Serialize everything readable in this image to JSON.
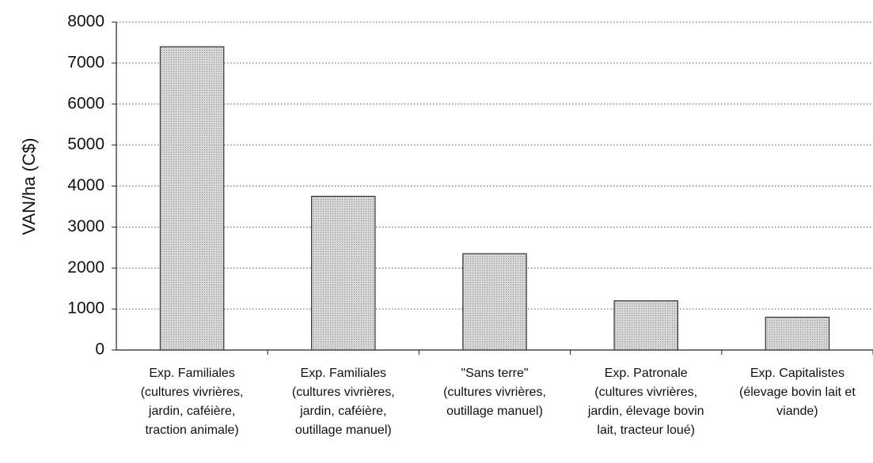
{
  "chart_data": {
    "type": "bar",
    "ylabel": "VAN/ha (C$)",
    "categories": [
      [
        "Exp. Familiales",
        "(cultures vivrières,",
        "jardin, caféière,",
        "traction animale)"
      ],
      [
        "Exp. Familiales",
        "(cultures vivrières,",
        "jardin, caféière,",
        "outillage manuel)"
      ],
      [
        "\"Sans terre\"",
        "(cultures vivrières,",
        "outillage manuel)"
      ],
      [
        "Exp. Patronale",
        "(cultures vivrières,",
        "jardin, élevage bovin",
        "lait, tracteur loué)"
      ],
      [
        "Exp. Capitalistes",
        "(élevage bovin lait et",
        "viande)"
      ]
    ],
    "values": [
      7400,
      3750,
      2350,
      1200,
      800
    ],
    "color": "#c8c8c8",
    "ylim": [
      0,
      8000
    ],
    "yticks": [
      0,
      1000,
      2000,
      3000,
      4000,
      5000,
      6000,
      7000,
      8000
    ],
    "grid": true
  }
}
